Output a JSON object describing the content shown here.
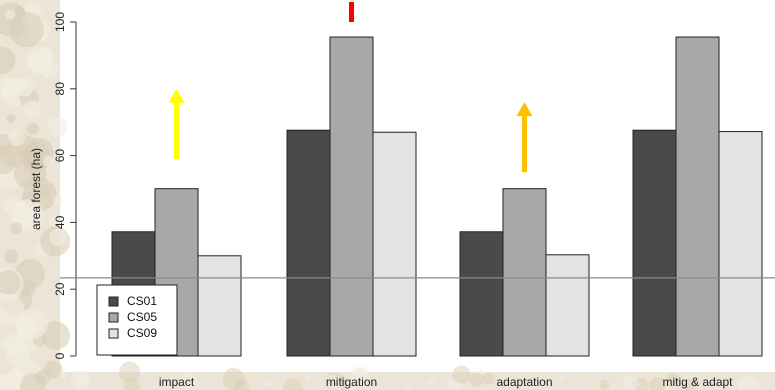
{
  "chart_data": {
    "type": "bar",
    "categories": [
      "impact",
      "mitigation",
      "adaptation",
      "mitig & adapt"
    ],
    "series": [
      {
        "name": "CS01",
        "color": "#4a4a4a",
        "values": [
          37.2,
          67.6,
          37.2,
          67.6
        ]
      },
      {
        "name": "CS05",
        "color": "#a8a8a8",
        "values": [
          50.1,
          95.5,
          50.1,
          95.5
        ]
      },
      {
        "name": "CS09",
        "color": "#e3e3e3",
        "values": [
          30.0,
          67.0,
          30.3,
          67.2
        ]
      }
    ],
    "title": "",
    "xlabel": "",
    "ylabel": "area forest (ha)",
    "ylim": [
      0,
      100
    ],
    "yticks": [
      "0",
      "20",
      "40",
      "60",
      "80",
      "100"
    ],
    "grid": false,
    "legend_position": "bottom-left",
    "reference_line": {
      "value": 23.4,
      "color": "#8a8a8a"
    },
    "annotations": [
      {
        "type": "arrow",
        "category": "impact",
        "color": "#ffff00",
        "from": 59,
        "to": 80
      },
      {
        "type": "arrow",
        "category": "mitigation",
        "color": "#ff0000",
        "from": 100,
        "to": 106
      },
      {
        "type": "arrow",
        "category": "adaptation",
        "color": "#ffc000",
        "from": 55,
        "to": 76
      }
    ]
  }
}
